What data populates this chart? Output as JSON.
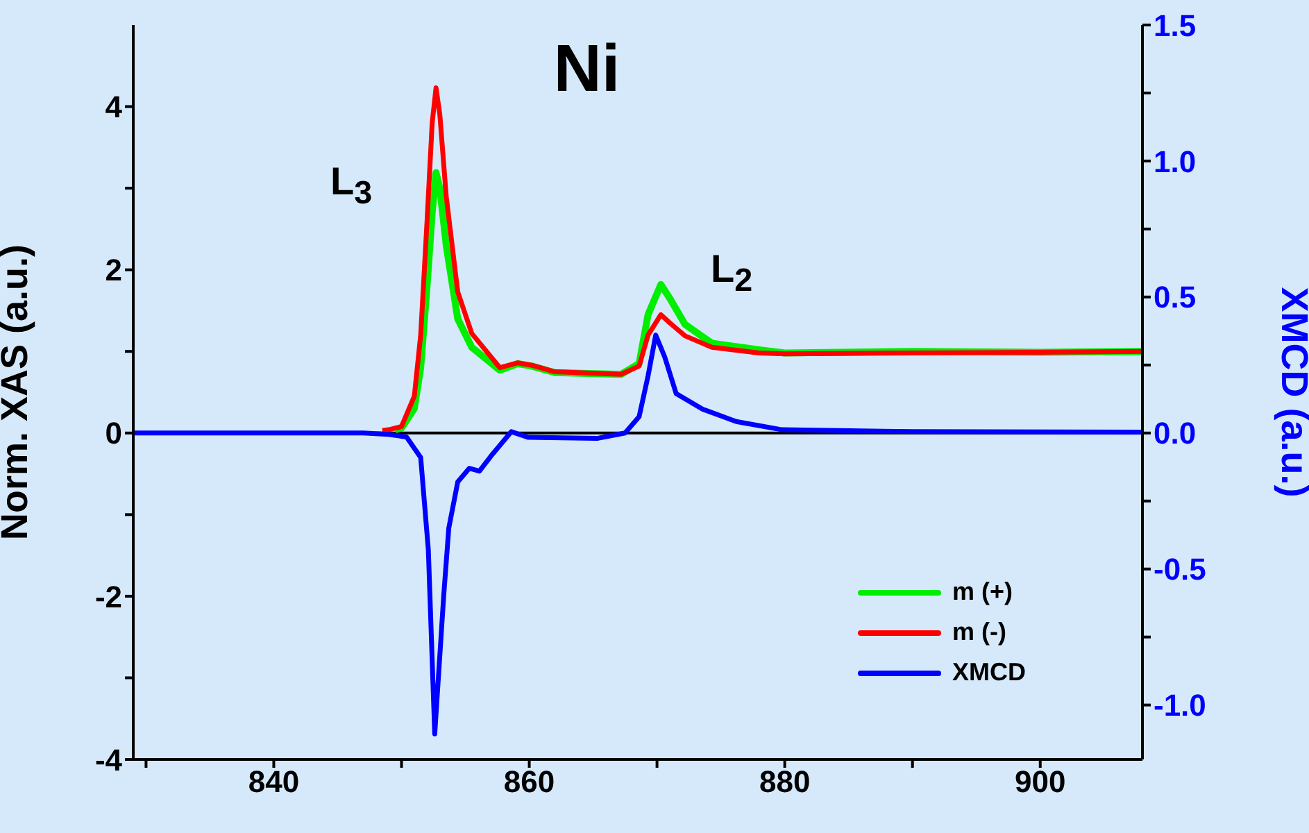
{
  "chart_data": {
    "type": "line",
    "title": "Ni",
    "xlim": [
      829,
      908
    ],
    "xticks": [
      {
        "value": 830,
        "label": null
      },
      840,
      {
        "value": 850,
        "label": null
      },
      860,
      {
        "value": 870,
        "label": null
      },
      880,
      {
        "value": 890,
        "label": null
      },
      900
    ],
    "ylim": [
      -4,
      5
    ],
    "yticks": [
      -4,
      {
        "value": -3,
        "label": null
      },
      -2,
      {
        "value": -1,
        "label": null
      },
      0,
      {
        "value": 1,
        "label": null
      },
      2,
      {
        "value": 3,
        "label": null
      },
      4
    ],
    "y2lim": [
      -1.2,
      1.5
    ],
    "y2ticks": [
      {
        "value": -1,
        "label": "-1.0"
      },
      {
        "value": -0.75,
        "label": null
      },
      -0.5,
      {
        "value": -0.25,
        "label": null
      },
      {
        "value": 0,
        "label": "0.0"
      },
      {
        "value": 0.25,
        "label": null
      },
      0.5,
      {
        "value": 0.75,
        "label": null
      },
      {
        "value": 1,
        "label": "1.0"
      },
      {
        "value": 1.25,
        "label": null
      },
      1.5
    ],
    "ylabel": "Norm. XAS (a.u.)",
    "y2label": "XMCD (a.u.)",
    "legend": "bottom right",
    "line_style": "solid",
    "ref_lines": [
      {
        "axis": "y",
        "value": 0,
        "color": "#000000"
      }
    ],
    "annotations": [
      "L$_{3}$",
      "L$_{2}$"
    ],
    "series": [
      {
        "name": "m (+)",
        "color": "#00ee00",
        "x": [
          849.5,
          850,
          851,
          851.5,
          852,
          852.4,
          852.7,
          853,
          853.5,
          854.4,
          855.5,
          857.7,
          859.1,
          860.2,
          862,
          867.2,
          868.6,
          869.3,
          870.3,
          871,
          872.2,
          874.3,
          878,
          880,
          890,
          900,
          908
        ],
        "values": [
          0.04,
          0.06,
          0.3,
          0.8,
          1.8,
          2.7,
          3.19,
          3.0,
          2.3,
          1.4,
          1.05,
          0.77,
          0.85,
          0.82,
          0.74,
          0.72,
          0.85,
          1.45,
          1.82,
          1.65,
          1.33,
          1.1,
          1.02,
          0.98,
          1.0,
          0.99,
          1.0
        ]
      },
      {
        "name": "m (-)",
        "color": "#ff0000",
        "x": [
          848.5,
          849,
          850,
          851,
          851.5,
          852,
          852.4,
          852.7,
          853,
          853.5,
          854.4,
          855.5,
          857.7,
          859.1,
          860.2,
          862,
          867.2,
          868.6,
          869.3,
          870.3,
          871,
          872.2,
          874.3,
          878,
          880,
          890,
          900,
          908
        ],
        "values": [
          0.03,
          0.04,
          0.08,
          0.45,
          1.2,
          2.6,
          3.8,
          4.23,
          3.9,
          2.9,
          1.73,
          1.22,
          0.8,
          0.86,
          0.83,
          0.75,
          0.72,
          0.82,
          1.2,
          1.45,
          1.35,
          1.19,
          1.05,
          0.98,
          0.97,
          0.98,
          0.99,
          1.0
        ]
      },
      {
        "name": "XMCD",
        "color": "#0000ff",
        "axis": "y2",
        "x": [
          829,
          847,
          849,
          850.4,
          851.5,
          852.1,
          852.6,
          853.3,
          853.7,
          854.4,
          855.3,
          856.1,
          857,
          858.6,
          859.9,
          865.3,
          867.5,
          868.6,
          869.3,
          869.9,
          870.6,
          871.5,
          873.6,
          876.2,
          879.8,
          890,
          908
        ],
        "values": [
          0,
          0,
          -0.005,
          -0.015,
          -0.09,
          -0.43,
          -1.106,
          -0.6,
          -0.35,
          -0.18,
          -0.13,
          -0.14,
          -0.085,
          0.005,
          -0.016,
          -0.02,
          0,
          0.06,
          0.21,
          0.36,
          0.28,
          0.145,
          0.087,
          0.042,
          0.012,
          0.005,
          0.003
        ]
      }
    ]
  }
}
